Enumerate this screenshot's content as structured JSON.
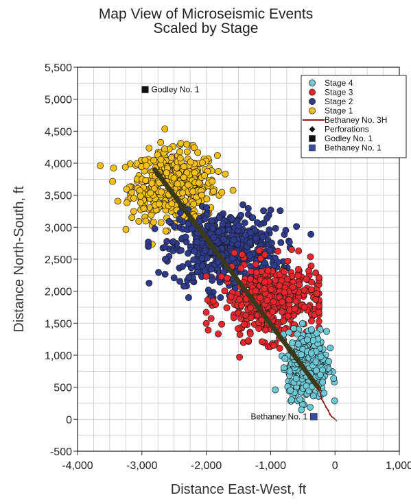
{
  "chart_data": {
    "type": "scatter",
    "title_line1": "Map View of Microseismic Events",
    "title_line2": "Scaled by Stage",
    "xlabel": "Distance East-West, ft",
    "ylabel": "Distance North-South, ft",
    "xlim": [
      -4000,
      1000
    ],
    "ylim": [
      -500,
      5500
    ],
    "x_ticks": [
      -4000,
      -3000,
      -2000,
      -1000,
      0,
      1000
    ],
    "x_tick_labels": [
      "-4,000",
      "-3,000",
      "-2,000",
      "-1,000",
      "0",
      "1,000"
    ],
    "y_ticks": [
      -500,
      0,
      500,
      1000,
      1500,
      2000,
      2500,
      3000,
      3500,
      4000,
      4500,
      5000,
      5500
    ],
    "y_tick_labels": [
      "-500",
      "0",
      "500",
      "1,000",
      "1,500",
      "2,000",
      "2,500",
      "3,000",
      "3,500",
      "4,000",
      "4,500",
      "5,000",
      "5,500"
    ],
    "grid": true,
    "legend_position": "top-right",
    "legend": [
      {
        "label": "Stage 4",
        "marker": "circle",
        "color": "#6cc8d4"
      },
      {
        "label": "Stage 3",
        "marker": "circle",
        "color": "#e8262c"
      },
      {
        "label": "Stage 2",
        "marker": "circle",
        "color": "#2e3a8c"
      },
      {
        "label": "Stage 1",
        "marker": "circle",
        "color": "#f4bf16"
      },
      {
        "label": "Bethaney No. 3H",
        "marker": "line",
        "color": "#8b1a1a"
      },
      {
        "label": "Perforations",
        "marker": "diamond",
        "color": "#111111"
      },
      {
        "label": "Godley No. 1",
        "marker": "square",
        "color": "#111111"
      },
      {
        "label": "Bethaney No. 1",
        "marker": "square",
        "color": "#3a4ea0"
      }
    ],
    "clusters": [
      {
        "name": "Stage 1",
        "color": "#f4bf16",
        "count": 520,
        "cx": -2500,
        "cy": 3650,
        "sx": 330,
        "sy": 270,
        "xlim": [
          -3800,
          -1500
        ],
        "ylim": [
          2700,
          4550
        ]
      },
      {
        "name": "Stage 2",
        "color": "#2e3a8c",
        "count": 560,
        "cx": -1700,
        "cy": 2650,
        "sx": 420,
        "sy": 300,
        "xlim": [
          -2900,
          -350
        ],
        "ylim": [
          1900,
          3550
        ]
      },
      {
        "name": "Stage 3",
        "color": "#e8262c",
        "count": 440,
        "cx": -1000,
        "cy": 1850,
        "sx": 380,
        "sy": 300,
        "xlim": [
          -2000,
          -250
        ],
        "ylim": [
          700,
          2650
        ]
      },
      {
        "name": "Stage 4",
        "color": "#6cc8d4",
        "count": 400,
        "cx": -430,
        "cy": 850,
        "sx": 150,
        "sy": 260,
        "xlim": [
          -950,
          250
        ],
        "ylim": [
          -50,
          1600
        ]
      }
    ],
    "perforations_line": {
      "x1": -2800,
      "y1": 3900,
      "x2": -250,
      "y2": 480
    },
    "well_path_bethaney_3h": [
      [
        -250,
        480
      ],
      [
        -200,
        300
      ],
      [
        -120,
        160
      ],
      [
        -60,
        50
      ],
      [
        0,
        0
      ]
    ],
    "godley_no1": {
      "x": -2950,
      "y": 5150,
      "label": "Godley No. 1"
    },
    "bethaney_no1": {
      "x": -330,
      "y": 40,
      "label": "Bethaney No. 1"
    }
  }
}
